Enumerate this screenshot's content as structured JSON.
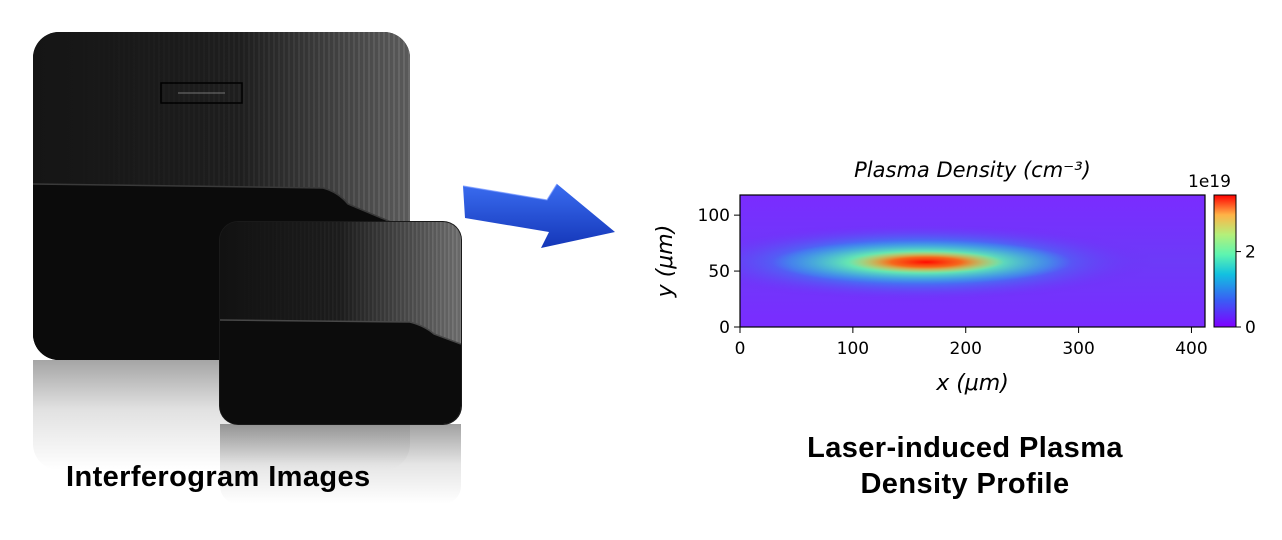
{
  "left_panel": {
    "caption": "Interferogram Images"
  },
  "right_panel": {
    "caption_line1": "Laser-induced Plasma",
    "caption_line2": "Density Profile"
  },
  "chart_data": {
    "type": "heatmap",
    "title": "Plasma Density (cm⁻³)",
    "xlabel": "x (μm)",
    "ylabel": "y (μm)",
    "x_ticks": [
      0,
      100,
      200,
      300,
      400
    ],
    "y_ticks": [
      0,
      50,
      100
    ],
    "xlim": [
      0,
      412
    ],
    "ylim": [
      0,
      118
    ],
    "colormap": "rainbow",
    "colorbar": {
      "ticks": [
        0,
        2
      ],
      "tick_labels": [
        "0",
        "2"
      ],
      "offset_label": "1e19",
      "range": [
        0,
        3.5
      ]
    },
    "features": {
      "peak_x_um": 165,
      "peak_y_um": 58,
      "peak_value_1e19": 3.5,
      "background_value_1e19": 0.35
    }
  },
  "colors": {
    "arrow_blue": "#1f4fd8",
    "background": "#ffffff"
  }
}
